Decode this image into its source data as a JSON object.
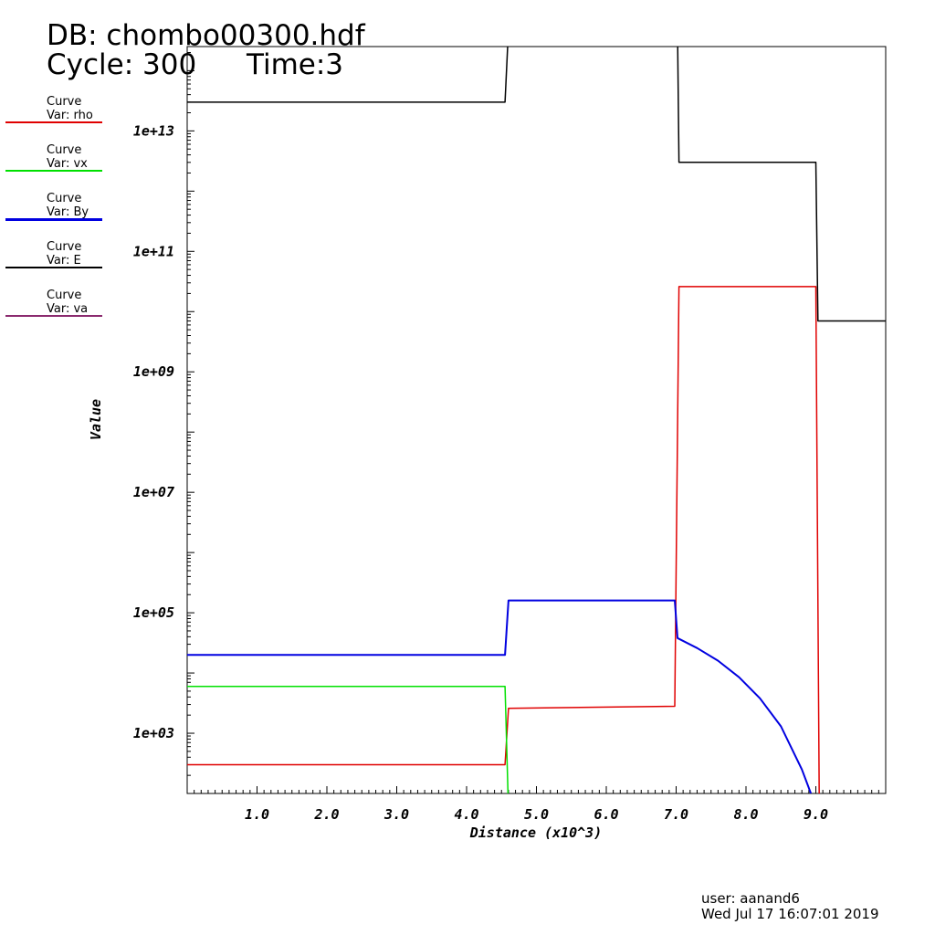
{
  "header": {
    "db": "DB: chombo00300.hdf",
    "cycle": "Cycle: 300",
    "time": "Time:3"
  },
  "legend": [
    {
      "title": "Curve",
      "var": "Var: rho",
      "color": "#e00000"
    },
    {
      "title": "Curve",
      "var": "Var: vx",
      "color": "#00e000"
    },
    {
      "title": "Curve",
      "var": "Var: By",
      "color": "#0000e0"
    },
    {
      "title": "Curve",
      "var": "Var: E",
      "color": "#000000"
    },
    {
      "title": "Curve",
      "var": "Var: va",
      "color": "#8b2b6f"
    }
  ],
  "footer": {
    "user": "user: aanand6",
    "date": "Wed Jul 17 16:07:01 2019"
  },
  "chart_data": {
    "type": "line",
    "xlabel": "Distance (x10^3)",
    "ylabel": "Value",
    "xlim": [
      0,
      10.0
    ],
    "ylim_log10": [
      2,
      14.4
    ],
    "y_scale": "log",
    "x_ticks": [
      "1.0",
      "2.0",
      "3.0",
      "4.0",
      "5.0",
      "6.0",
      "7.0",
      "8.0",
      "9.0"
    ],
    "x_tick_values": [
      1,
      2,
      3,
      4,
      5,
      6,
      7,
      8,
      9
    ],
    "y_ticks": [
      "1e+03",
      "1e+05",
      "1e+07",
      "1e+09",
      "1e+11",
      "1e+13"
    ],
    "y_tick_values": [
      1000.0,
      100000.0,
      10000000.0,
      1000000000.0,
      100000000000.0,
      10000000000000.0
    ],
    "series": [
      {
        "name": "rho",
        "color": "#e00000",
        "points": [
          [
            0,
            300
          ],
          [
            4.55,
            300
          ],
          [
            4.6,
            2600
          ],
          [
            6.98,
            2800
          ],
          [
            7.04,
            26000000000.0
          ],
          [
            9.0,
            26000000000.0
          ],
          [
            9.05,
            50
          ]
        ]
      },
      {
        "name": "vx",
        "color": "#00e000",
        "points": [
          [
            0,
            6000
          ],
          [
            4.55,
            6000
          ],
          [
            4.6,
            50
          ]
        ]
      },
      {
        "name": "By",
        "color": "#0000e0",
        "points": [
          [
            0,
            20000
          ],
          [
            4.55,
            20000
          ],
          [
            4.6,
            160000
          ],
          [
            6.98,
            160000
          ],
          [
            7.02,
            38000
          ],
          [
            7.3,
            26000
          ],
          [
            7.6,
            16000
          ],
          [
            7.9,
            8500
          ],
          [
            8.2,
            3800
          ],
          [
            8.5,
            1300
          ],
          [
            8.8,
            250
          ],
          [
            8.93,
            100
          ]
        ]
      },
      {
        "name": "E",
        "color": "#000000",
        "points": [
          [
            0,
            30000000000000.0
          ],
          [
            4.55,
            30000000000000.0
          ],
          [
            4.6,
            500000000000000.0
          ],
          [
            7.02,
            500000000000000.0
          ],
          [
            7.04,
            3000000000000.0
          ],
          [
            9.0,
            3000000000000.0
          ],
          [
            9.03,
            7000000000.0
          ],
          [
            10.0,
            7000000000.0
          ]
        ]
      }
    ]
  }
}
